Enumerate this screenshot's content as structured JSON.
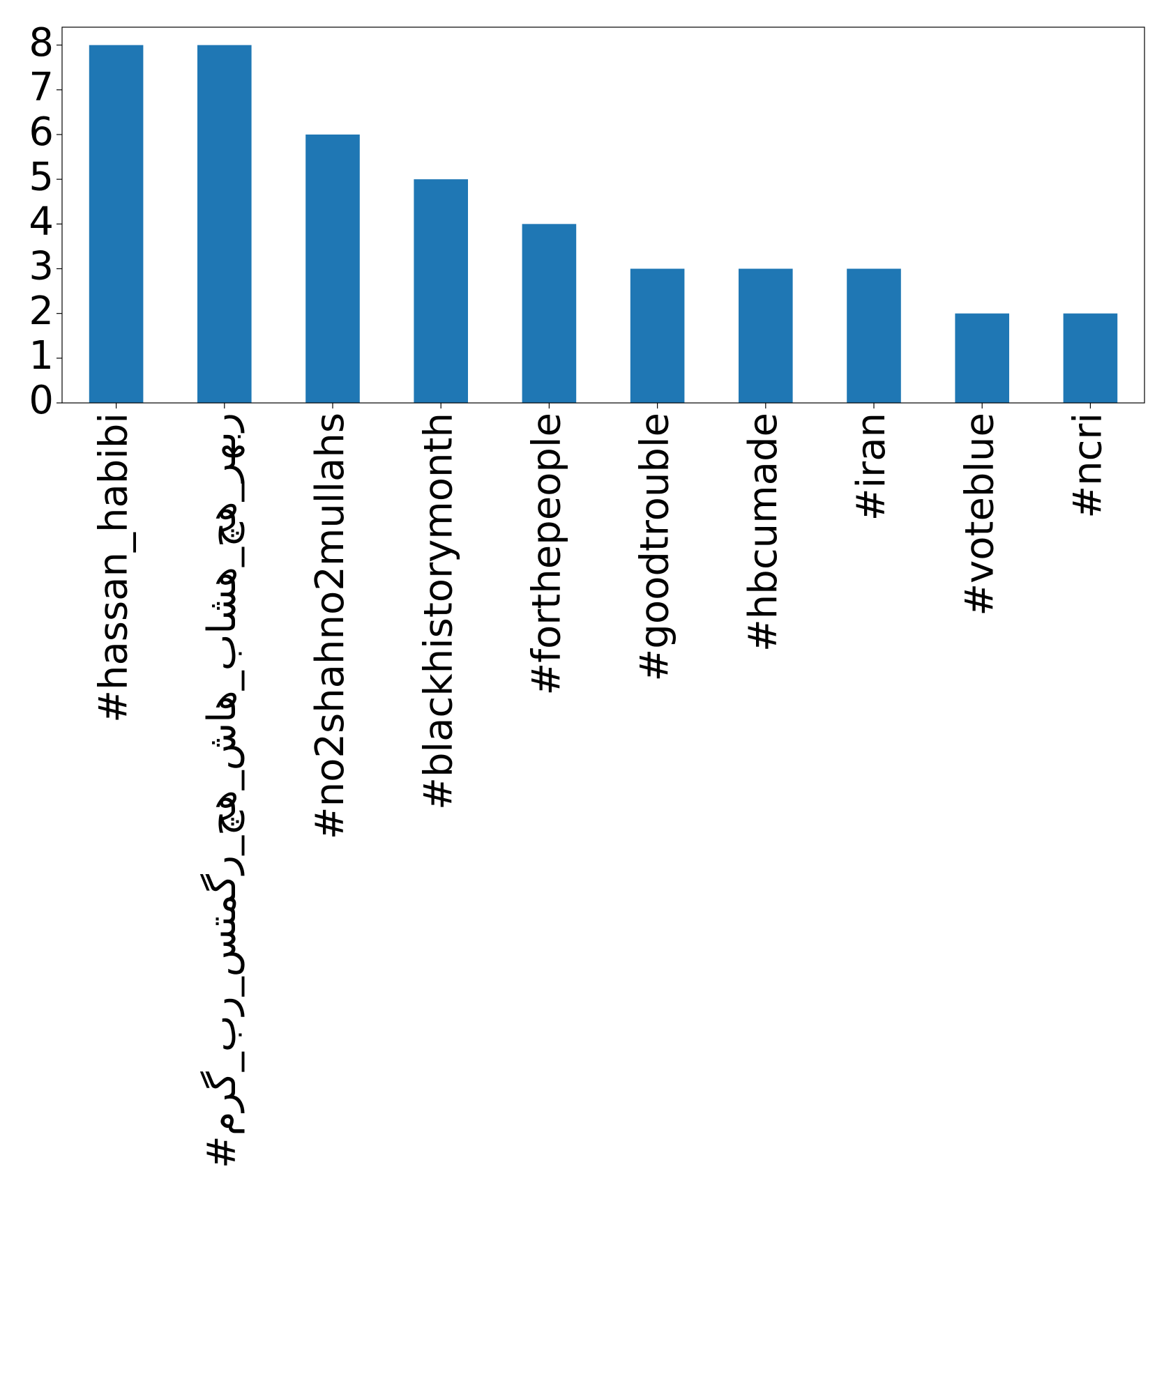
{
  "chart_data": {
    "type": "bar",
    "categories": [
      "#hassan_habibi",
      "#مرگ_بر_ستمگر_چه_شاه_باشه_چه_رهبر",
      "#no2shahno2mullahs",
      "#blackhistorymonth",
      "#forthepeople",
      "#goodtrouble",
      "#hbcumade",
      "#iran",
      "#voteblue",
      "#ncri"
    ],
    "values": [
      8,
      8,
      6,
      5,
      4,
      3,
      3,
      3,
      2,
      2
    ],
    "color": "#1f77b4",
    "ylim": [
      0,
      8.4
    ],
    "yticks": [
      0,
      1,
      2,
      3,
      4,
      5,
      6,
      7,
      8
    ]
  }
}
